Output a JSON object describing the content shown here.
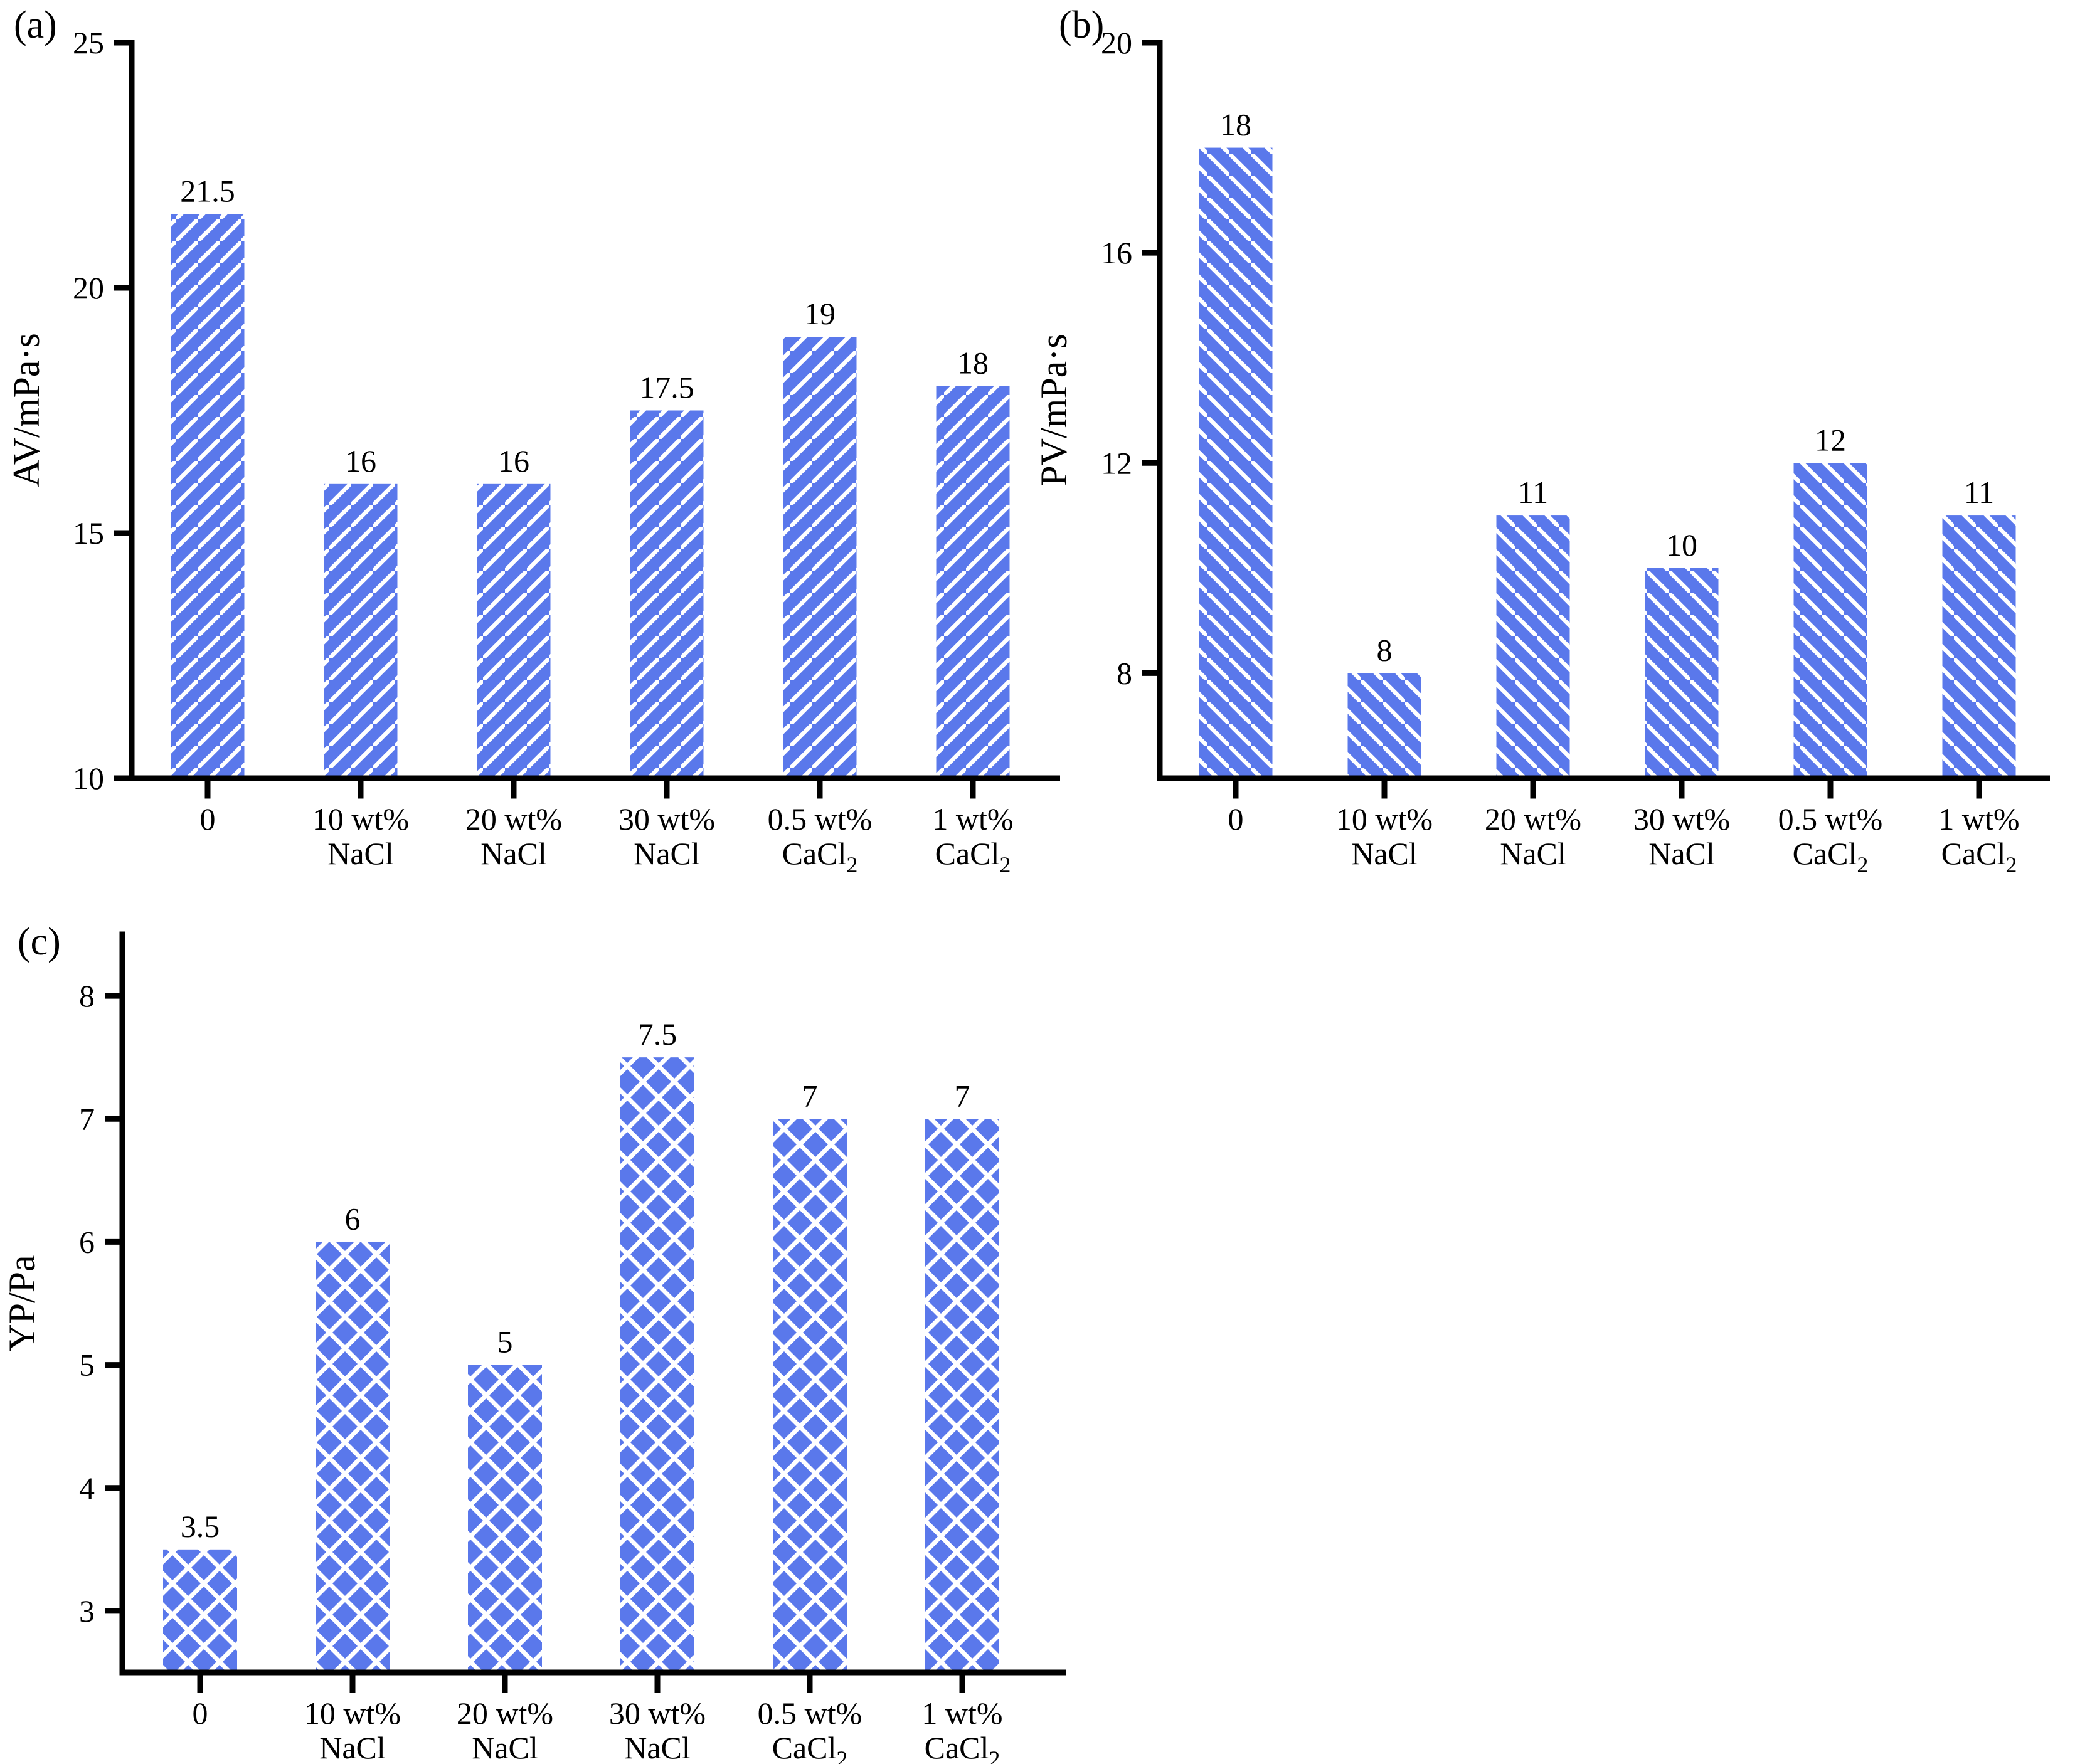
{
  "figure": {
    "background": "#ffffff",
    "bar_color": "#5a78eb",
    "hatch_color": "#ffffff",
    "axis_color": "#000000",
    "text_color": "#000000"
  },
  "chart_data": [
    {
      "type": "bar",
      "panel_label": "(a)",
      "ylabel": "AV/mPa·s",
      "ymin": 10,
      "ymax": 25,
      "yticks": [
        10,
        15,
        20,
        25
      ],
      "categories": [
        {
          "line1": "0",
          "line2": "",
          "line2_sub": ""
        },
        {
          "line1": "10 wt%",
          "line2": "NaCl",
          "line2_sub": ""
        },
        {
          "line1": "20 wt%",
          "line2": "NaCl",
          "line2_sub": ""
        },
        {
          "line1": "30 wt%",
          "line2": "NaCl",
          "line2_sub": ""
        },
        {
          "line1": "0.5 wt%",
          "line2": "CaCl",
          "line2_sub": "2"
        },
        {
          "line1": "1 wt%",
          "line2": "CaCl",
          "line2_sub": "2"
        }
      ],
      "values": [
        21.5,
        16,
        16,
        17.5,
        19,
        18
      ],
      "value_labels": [
        "21.5",
        "16",
        "16",
        "17.5",
        "19",
        "18"
      ],
      "hatch": "diagonal-up",
      "grid": false,
      "legend": "none"
    },
    {
      "type": "bar",
      "panel_label": "(b)",
      "ylabel": "PV/mPa·s",
      "ymin": 6,
      "ymax": 20,
      "yticks": [
        8,
        12,
        16,
        20
      ],
      "categories": [
        {
          "line1": "0",
          "line2": "",
          "line2_sub": ""
        },
        {
          "line1": "10 wt%",
          "line2": "NaCl",
          "line2_sub": ""
        },
        {
          "line1": "20 wt%",
          "line2": "NaCl",
          "line2_sub": ""
        },
        {
          "line1": "30 wt%",
          "line2": "NaCl",
          "line2_sub": ""
        },
        {
          "line1": "0.5 wt%",
          "line2": "CaCl",
          "line2_sub": "2"
        },
        {
          "line1": "1 wt%",
          "line2": "CaCl",
          "line2_sub": "2"
        }
      ],
      "values": [
        18,
        8,
        11,
        10,
        12,
        11
      ],
      "value_labels": [
        "18",
        "8",
        "11",
        "10",
        "12",
        "11"
      ],
      "hatch": "diagonal-down",
      "grid": false,
      "legend": "none"
    },
    {
      "type": "bar",
      "panel_label": "(c)",
      "ylabel": "YP/Pa",
      "ymin": 2.5,
      "ymax": 8.5,
      "yticks": [
        3,
        4,
        5,
        6,
        7,
        8
      ],
      "categories": [
        {
          "line1": "0",
          "line2": "",
          "line2_sub": ""
        },
        {
          "line1": "10 wt%",
          "line2": "NaCl",
          "line2_sub": ""
        },
        {
          "line1": "20 wt%",
          "line2": "NaCl",
          "line2_sub": ""
        },
        {
          "line1": "30 wt%",
          "line2": "NaCl",
          "line2_sub": ""
        },
        {
          "line1": "0.5 wt%",
          "line2": "CaCl",
          "line2_sub": "2"
        },
        {
          "line1": "1 wt%",
          "line2": "CaCl",
          "line2_sub": "2"
        }
      ],
      "values": [
        3.5,
        6,
        5,
        7.5,
        7,
        7
      ],
      "value_labels": [
        "3.5",
        "6",
        "5",
        "7.5",
        "7",
        "7"
      ],
      "hatch": "crosshatch",
      "grid": false,
      "legend": "none"
    }
  ]
}
